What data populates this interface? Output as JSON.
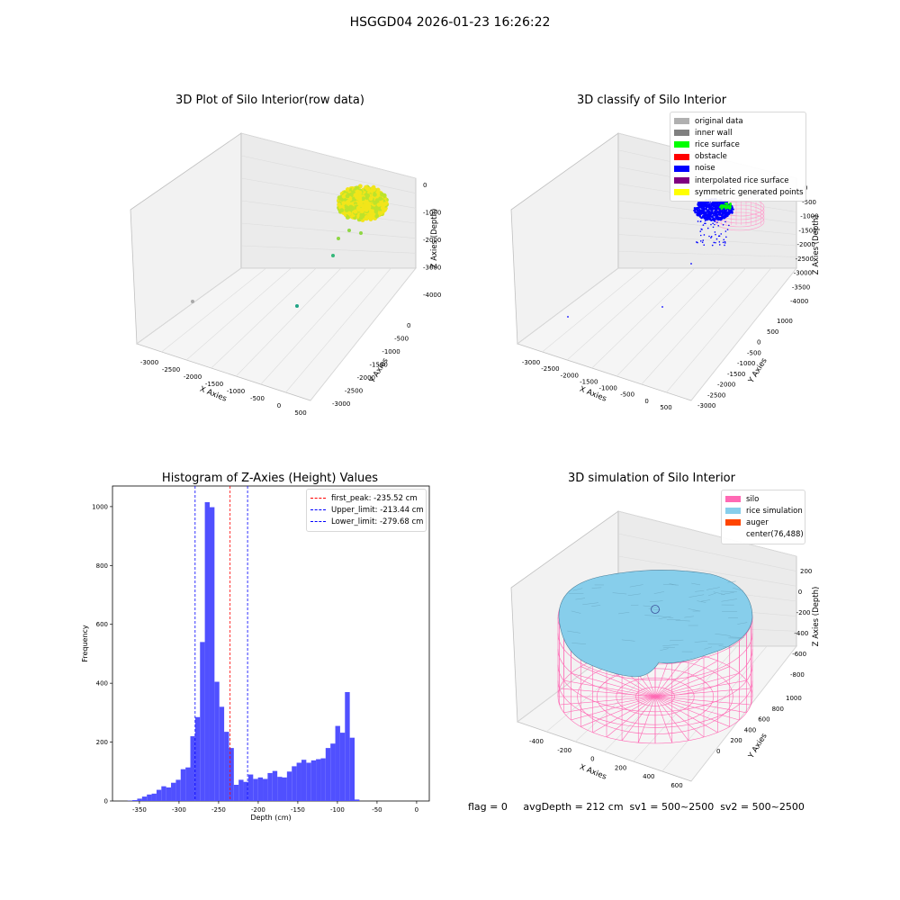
{
  "suptitle": "HSGGD04 2026-01-23 16:26:22",
  "footer": "flag = 0     avgDepth = 212 cm  sv1 = 500~2500  sv2 = 500~2500",
  "chart_data": [
    {
      "type": "scatter",
      "title": "3D Plot of Silo Interior(row data)",
      "xlabel": "X Axies",
      "ylabel": "Y Axies",
      "zlabel": "Z Axies (Depth)",
      "x_ticks": [
        "-3000",
        "-2500",
        "-2000",
        "-1500",
        "-1000",
        "-500",
        "0",
        "500"
      ],
      "y_ticks": [
        "0",
        "-500",
        "-1000",
        "-1500",
        "-2000",
        "-2500",
        "-3000"
      ],
      "z_ticks": [
        "0",
        "-1000",
        "-2000",
        "-3000",
        "-4000"
      ],
      "point_colors": [
        "#f2e51a",
        "#bde32b",
        "#8fd744",
        "#35b779",
        "#20a486",
        "#aaaaaa"
      ]
    },
    {
      "type": "scatter",
      "title": "3D classify of Silo Interior",
      "xlabel": "X Axies",
      "ylabel": "Y Axies",
      "zlabel": "Z Axies (Depth)",
      "x_ticks": [
        "-3000",
        "-2500",
        "-2000",
        "-1500",
        "-1000",
        "-500",
        "0",
        "500"
      ],
      "y_ticks": [
        "1000",
        "500",
        "0",
        "-500",
        "-1000",
        "-1500",
        "-2000",
        "-2500",
        "-3000"
      ],
      "z_ticks": [
        "0",
        "-500",
        "-1000",
        "-1500",
        "-2000",
        "-2500",
        "-3000",
        "-3500",
        "-4000"
      ],
      "legend": [
        {
          "label": "original data",
          "color": "#b0b0b0"
        },
        {
          "label": "inner wall",
          "color": "#808080"
        },
        {
          "label": "rice surface",
          "color": "#00ff00"
        },
        {
          "label": "obstacle",
          "color": "#ff0000"
        },
        {
          "label": "noise",
          "color": "#0000ff"
        },
        {
          "label": "interpolated rice surface",
          "color": "#800080"
        },
        {
          "label": "symmetric generated points",
          "color": "#ffff00"
        }
      ]
    },
    {
      "type": "bar",
      "title": "Histogram of Z-Axies (Height) Values",
      "xlabel": "Depth (cm)",
      "ylabel": "Frequency",
      "xlim": [
        -384,
        16
      ],
      "ylim": [
        0,
        1070
      ],
      "x_ticks": [
        -350,
        -300,
        -250,
        -200,
        -150,
        -100,
        -50,
        0
      ],
      "y_ticks": [
        0,
        200,
        400,
        600,
        800,
        1000
      ],
      "bar_color": "#5050ff",
      "bin_start": -365,
      "bin_width": 6.1,
      "values": [
        1,
        3,
        8,
        15,
        22,
        25,
        38,
        50,
        46,
        62,
        72,
        108,
        114,
        220,
        285,
        540,
        1015,
        998,
        405,
        320,
        235,
        180,
        55,
        72,
        65,
        90,
        75,
        80,
        75,
        95,
        102,
        82,
        80,
        100,
        118,
        130,
        140,
        130,
        138,
        142,
        145,
        180,
        195,
        255,
        232,
        370,
        215,
        5
      ],
      "lines": [
        {
          "label": "first_peak: -235.52 cm",
          "value": -235.52,
          "color": "#ff0000"
        },
        {
          "label": "Upper_limit: -213.44 cm",
          "value": -213.44,
          "color": "#0000ff"
        },
        {
          "label": "Lower_limit: -279.68 cm",
          "value": -279.68,
          "color": "#0000ff"
        }
      ]
    },
    {
      "type": "scatter",
      "title": "3D simulation of Silo Interior",
      "xlabel": "X Axies",
      "ylabel": "Y Axies",
      "zlabel": "Z Axies (Depth)",
      "x_ticks": [
        "-400",
        "-200",
        "0",
        "200",
        "400",
        "600"
      ],
      "y_ticks": [
        "0",
        "200",
        "400",
        "600",
        "800",
        "1000"
      ],
      "z_ticks": [
        "200",
        "0",
        "-200",
        "-400",
        "-600",
        "-800"
      ],
      "legend": [
        {
          "label": "silo",
          "color": "#ff69b4"
        },
        {
          "label": "rice simulation",
          "color": "#87ceeb"
        },
        {
          "label": "auger",
          "color": "#ff4500"
        },
        {
          "label": "center(76,488)",
          "color": ""
        }
      ]
    }
  ]
}
